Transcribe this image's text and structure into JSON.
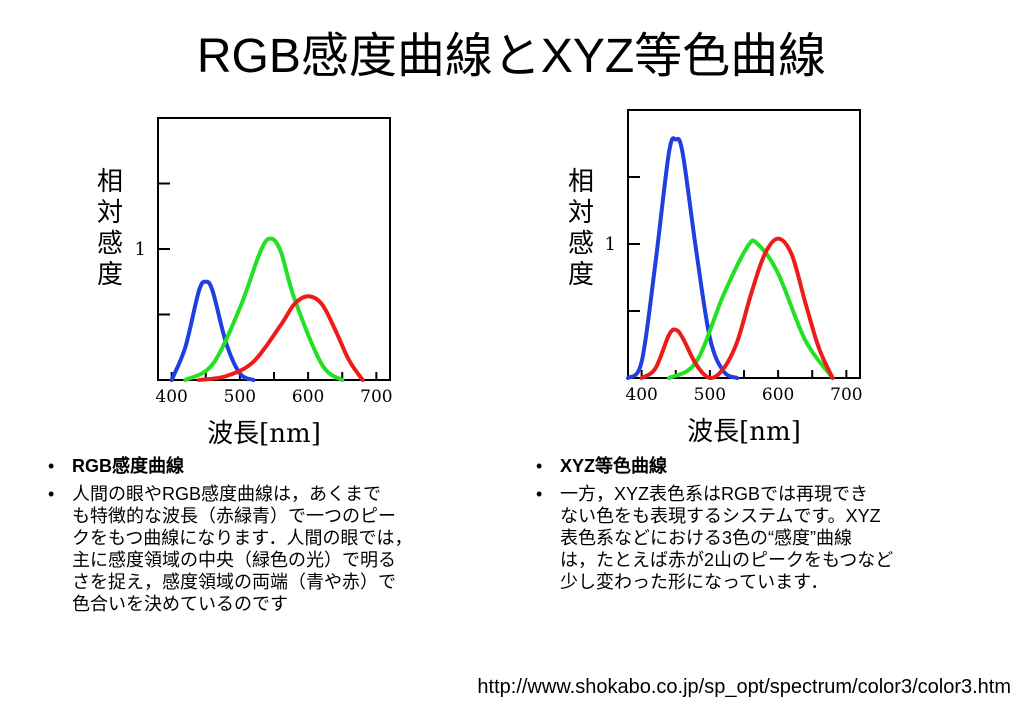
{
  "title": "RGB感度曲線とXYZ等色曲線",
  "chart_data": [
    {
      "type": "line",
      "name": "rgb",
      "ylabel": "相対感度",
      "xlabel": "波長[nm]",
      "xlim": [
        380,
        720
      ],
      "ylim": [
        0,
        2
      ],
      "xticks": [
        400,
        500,
        600,
        700
      ],
      "yticks": [
        1
      ],
      "series": [
        {
          "color": "#1f3fe0",
          "x": [
            400,
            420,
            440,
            450,
            460,
            480,
            500,
            520
          ],
          "y": [
            0,
            0.25,
            0.68,
            0.75,
            0.68,
            0.28,
            0.05,
            0
          ]
        },
        {
          "color": "#22e022",
          "x": [
            420,
            460,
            500,
            530,
            545,
            560,
            580,
            620,
            650
          ],
          "y": [
            0,
            0.12,
            0.55,
            0.98,
            1.08,
            0.98,
            0.62,
            0.12,
            0
          ]
        },
        {
          "color": "#ee1b1b",
          "x": [
            440,
            480,
            520,
            560,
            580,
            600,
            620,
            640,
            660,
            680
          ],
          "y": [
            0,
            0.03,
            0.14,
            0.42,
            0.58,
            0.64,
            0.58,
            0.38,
            0.15,
            0
          ]
        }
      ]
    },
    {
      "type": "line",
      "name": "xyz",
      "ylabel": "相対感度",
      "xlabel": "波長[nm]",
      "xlim": [
        380,
        720
      ],
      "ylim": [
        0,
        2
      ],
      "xticks": [
        400,
        500,
        600,
        700
      ],
      "yticks": [
        1
      ],
      "series": [
        {
          "color": "#1f3fe0",
          "x": [
            380,
            400,
            420,
            440,
            450,
            460,
            480,
            500,
            520,
            540
          ],
          "y": [
            0,
            0.12,
            0.85,
            1.68,
            1.78,
            1.68,
            0.95,
            0.3,
            0.05,
            0
          ]
        },
        {
          "color": "#22e022",
          "x": [
            440,
            480,
            520,
            555,
            570,
            600,
            640,
            680
          ],
          "y": [
            0,
            0.12,
            0.62,
            0.98,
            1.0,
            0.78,
            0.28,
            0
          ]
        },
        {
          "color": "#ee1b1b",
          "x": [
            400,
            420,
            440,
            450,
            460,
            480,
            500,
            520,
            540,
            560,
            580,
            600,
            620,
            640,
            660,
            680
          ],
          "y": [
            0,
            0.07,
            0.32,
            0.36,
            0.3,
            0.1,
            0,
            0.07,
            0.27,
            0.62,
            0.92,
            1.04,
            0.92,
            0.56,
            0.22,
            0
          ]
        }
      ]
    }
  ],
  "left": {
    "heading": "RGB感度曲線",
    "bullet": "•",
    "lines": [
      "人間の眼やRGB感度曲線は，あくまで",
      "も特徴的な波長（赤緑青）で一つのピー",
      "クをもつ曲線になります．人間の眼では，",
      "主に感度領域の中央（緑色の光）で明る",
      "さを捉え，感度領域の両端（青や赤）で",
      "色合いを決めているのです"
    ]
  },
  "right": {
    "heading": "XYZ等色曲線",
    "bullet": "•",
    "lines": [
      "一方，XYZ表色系はRGBでは再現でき",
      "ない色をも表現するシステムです。XYZ",
      "表色系などにおける3色の“感度”曲線",
      "は，たとえば赤が2山のピークをもつなど",
      "少し変わった形になっています．"
    ]
  },
  "url": "http://www.shokabo.co.jp/sp_opt/spectrum/color3/color3.htm"
}
